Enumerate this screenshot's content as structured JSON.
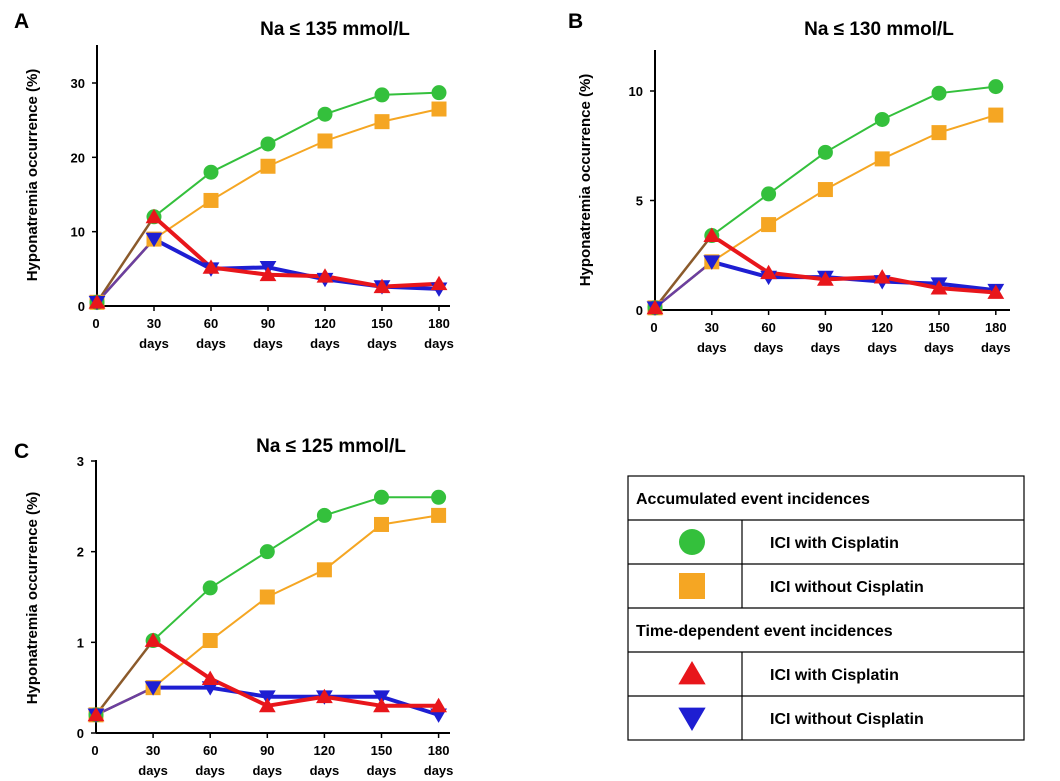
{
  "chart_data": [
    {
      "type": "line",
      "panel": "A",
      "title": "Na ≤ 135 mmol/L",
      "ylabel": "Hyponatremia occurrence (%)",
      "x_ticks": [
        "0",
        "30",
        "60",
        "90",
        "120",
        "150",
        "180"
      ],
      "x_sub": "days",
      "x": [
        0,
        30,
        60,
        90,
        120,
        150,
        180
      ],
      "ylim": [
        0,
        34
      ],
      "yticks": [
        0,
        10,
        20,
        30
      ],
      "series": [
        {
          "name": "ICI with Cisplatin",
          "group": "Accumulated event incidences",
          "color": "#34C03C",
          "marker": "circle",
          "values": [
            0.5,
            12,
            18,
            21.8,
            25.8,
            28.4,
            28.7
          ]
        },
        {
          "name": "ICI without Cisplatin",
          "group": "Accumulated event incidences",
          "color": "#F5A623",
          "marker": "square",
          "values": [
            0.5,
            9,
            14.2,
            18.8,
            22.2,
            24.8,
            26.5
          ]
        },
        {
          "name": "ICI with Cisplatin",
          "group": "Time-dependent event incidences",
          "color": "#E8161B",
          "marker": "triangle-up",
          "values": [
            0.5,
            12,
            5.2,
            4.2,
            4.0,
            2.6,
            3.0
          ]
        },
        {
          "name": "ICI without Cisplatin",
          "group": "Time-dependent event incidences",
          "color": "#1E1ED2",
          "marker": "triangle-down",
          "values": [
            0.5,
            9,
            5.0,
            5.2,
            3.6,
            2.6,
            2.3
          ]
        }
      ]
    },
    {
      "type": "line",
      "panel": "B",
      "title": "Na ≤ 130 mmol/L",
      "ylabel": "Hyponatremia occurrence (%)",
      "x_ticks": [
        "0",
        "30",
        "60",
        "90",
        "120",
        "150",
        "180"
      ],
      "x_sub": "days",
      "x": [
        0,
        30,
        60,
        90,
        120,
        150,
        180
      ],
      "ylim": [
        0,
        12
      ],
      "yticks": [
        0,
        5,
        10
      ],
      "series": [
        {
          "name": "ICI with Cisplatin",
          "group": "Accumulated event incidences",
          "color": "#34C03C",
          "marker": "circle",
          "values": [
            0.1,
            3.4,
            5.3,
            7.2,
            8.7,
            9.9,
            10.2
          ]
        },
        {
          "name": "ICI without Cisplatin",
          "group": "Accumulated event incidences",
          "color": "#F5A623",
          "marker": "square",
          "values": [
            0.1,
            2.2,
            3.9,
            5.5,
            6.9,
            8.1,
            8.9
          ]
        },
        {
          "name": "ICI with Cisplatin",
          "group": "Time-dependent event incidences",
          "color": "#E8161B",
          "marker": "triangle-up",
          "values": [
            0.1,
            3.4,
            1.7,
            1.4,
            1.5,
            1.0,
            0.8
          ]
        },
        {
          "name": "ICI without Cisplatin",
          "group": "Time-dependent event incidences",
          "color": "#1E1ED2",
          "marker": "triangle-down",
          "values": [
            0.1,
            2.2,
            1.5,
            1.5,
            1.3,
            1.2,
            0.9
          ]
        }
      ]
    },
    {
      "type": "line",
      "panel": "C",
      "title": "Na ≤ 125 mmol/L",
      "ylabel": "Hyponatremia occurrence (%)",
      "x_ticks": [
        "0",
        "30",
        "60",
        "90",
        "120",
        "150",
        "180"
      ],
      "x_sub": "days",
      "x": [
        0,
        30,
        60,
        90,
        120,
        150,
        180
      ],
      "ylim": [
        0,
        3
      ],
      "yticks": [
        0,
        1,
        2,
        3
      ],
      "series": [
        {
          "name": "ICI with Cisplatin",
          "group": "Accumulated event incidences",
          "color": "#34C03C",
          "marker": "circle",
          "values": [
            0.2,
            1.02,
            1.6,
            2.0,
            2.4,
            2.6,
            2.6
          ]
        },
        {
          "name": "ICI without Cisplatin",
          "group": "Accumulated event incidences",
          "color": "#F5A623",
          "marker": "square",
          "values": [
            0.2,
            0.5,
            1.02,
            1.5,
            1.8,
            2.3,
            2.4
          ]
        },
        {
          "name": "ICI with Cisplatin",
          "group": "Time-dependent event incidences",
          "color": "#E8161B",
          "marker": "triangle-up",
          "values": [
            0.2,
            1.02,
            0.6,
            0.3,
            0.4,
            0.3,
            0.3
          ]
        },
        {
          "name": "ICI without Cisplatin",
          "group": "Time-dependent event incidences",
          "color": "#1E1ED2",
          "marker": "triangle-down",
          "values": [
            0.2,
            0.5,
            0.5,
            0.4,
            0.4,
            0.4,
            0.2
          ]
        }
      ]
    }
  ],
  "legend": {
    "groups": [
      {
        "heading": "Accumulated event incidences",
        "items": [
          {
            "marker": "circle",
            "color": "#34C03C",
            "label": "ICI with Cisplatin"
          },
          {
            "marker": "square",
            "color": "#F5A623",
            "label": "ICI without Cisplatin"
          }
        ]
      },
      {
        "heading": "Time-dependent event incidences",
        "items": [
          {
            "marker": "triangle-up",
            "color": "#E8161B",
            "label": "ICI with Cisplatin"
          },
          {
            "marker": "triangle-down",
            "color": "#1E1ED2",
            "label": "ICI without Cisplatin"
          }
        ]
      }
    ]
  }
}
